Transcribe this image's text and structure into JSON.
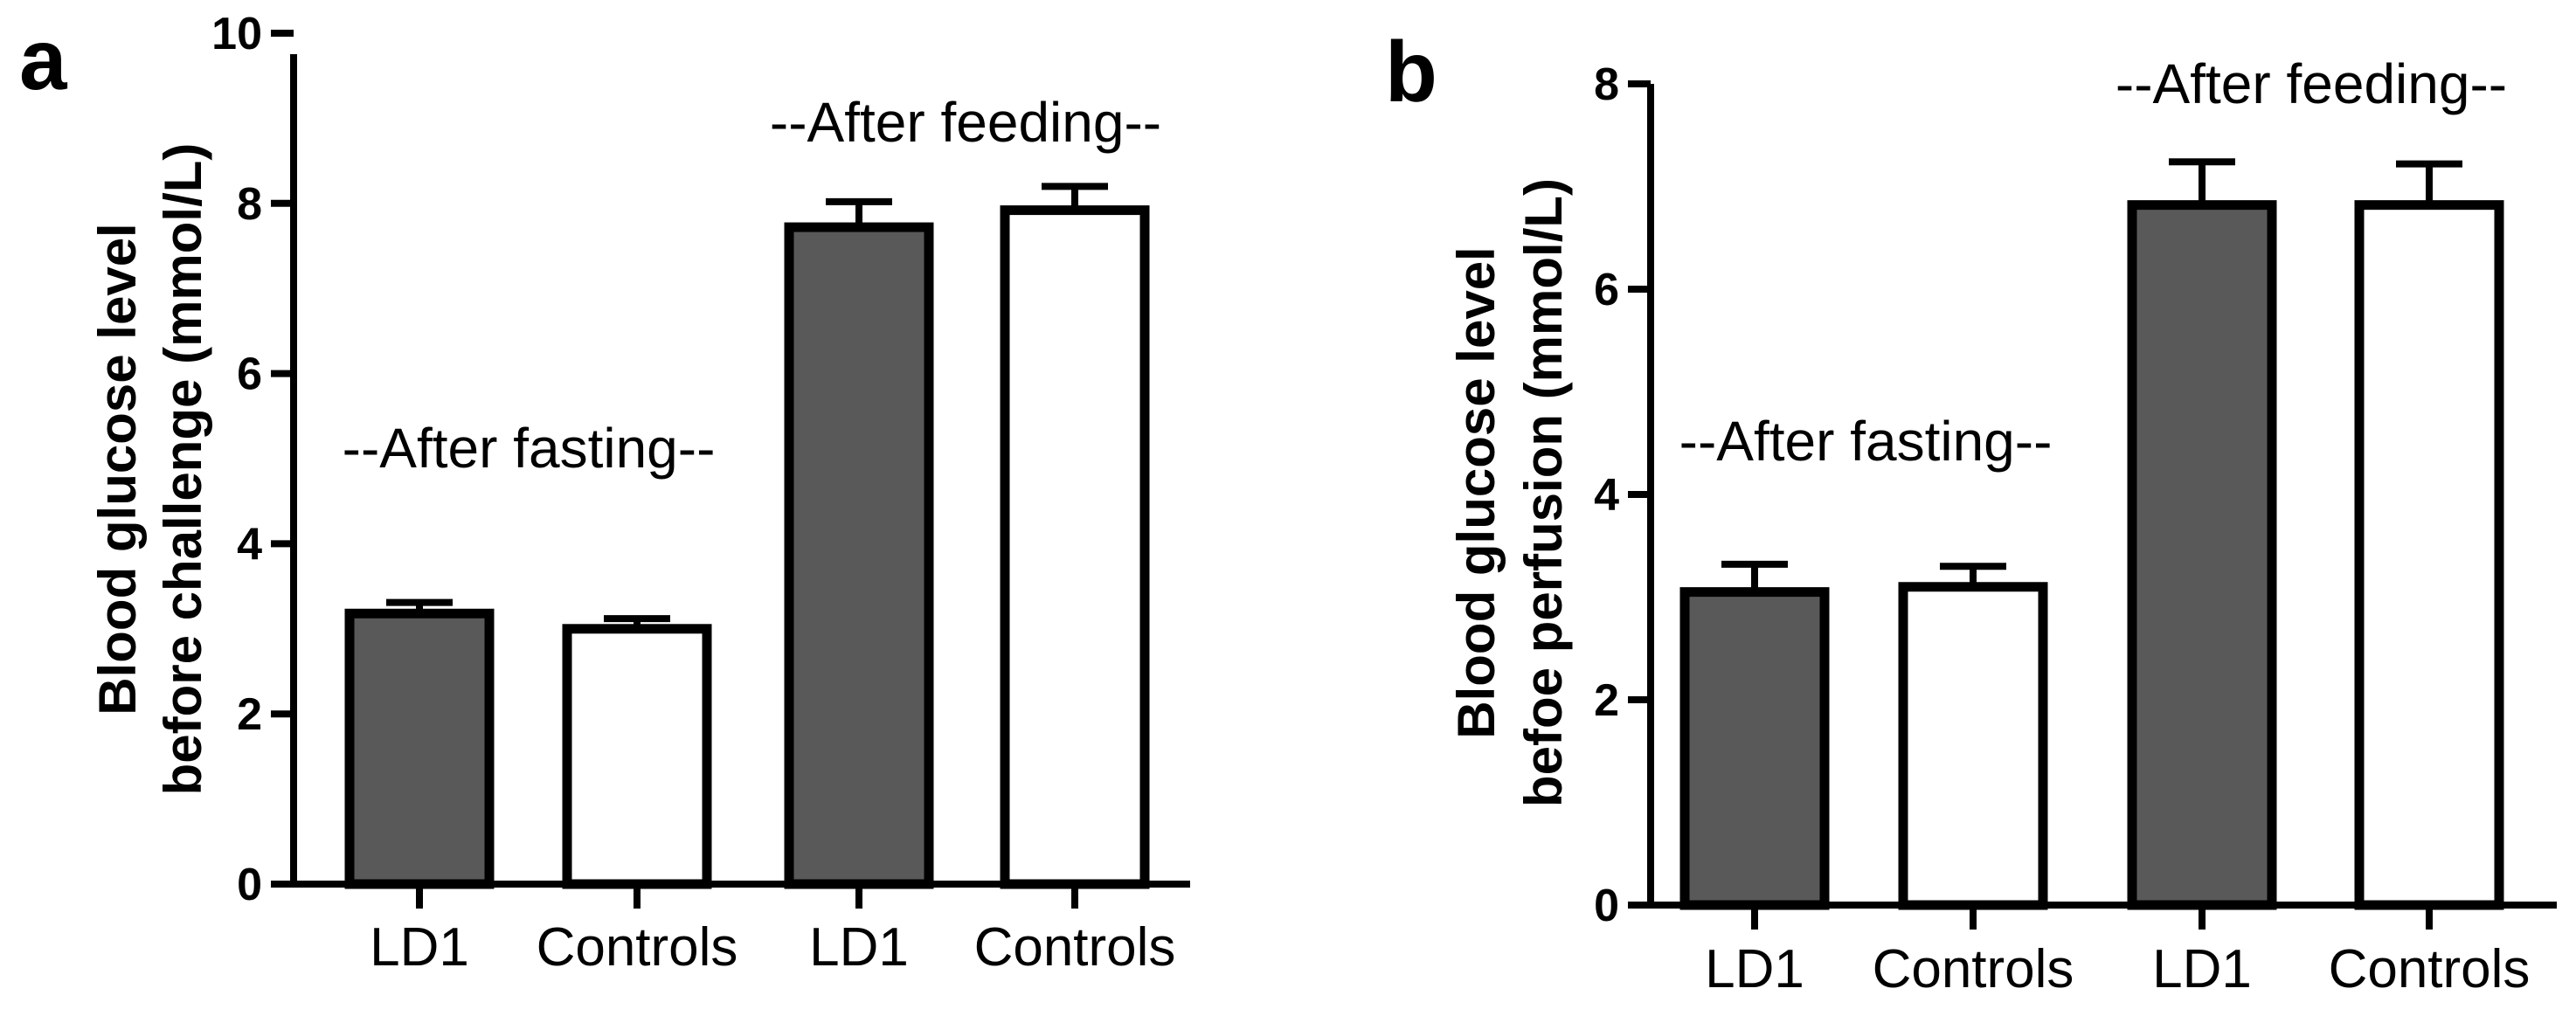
{
  "chart_data": [
    {
      "type": "bar",
      "panel": "a",
      "title": "",
      "categories": [
        "LD1",
        "Controls",
        "LD1",
        "Controls"
      ],
      "values": [
        3.18,
        3.0,
        7.72,
        7.92
      ],
      "errors": [
        0.13,
        0.12,
        0.3,
        0.28
      ],
      "bar_colors": [
        "#595959",
        "#ffffff",
        "#595959",
        "#ffffff"
      ],
      "ylabel_lines": [
        "Blood glucose level",
        "before challenge (mmol/L)"
      ],
      "xlabel": "",
      "ylim": [
        0,
        10
      ],
      "yticks": [
        0,
        2,
        4,
        6,
        8,
        10
      ],
      "annotations": [
        "--After fasting--",
        "--After feeding--"
      ]
    },
    {
      "type": "bar",
      "panel": "b",
      "title": "",
      "categories": [
        "LD1",
        "Controls",
        "LD1",
        "Controls"
      ],
      "values": [
        3.05,
        3.1,
        6.82,
        6.82
      ],
      "errors": [
        0.27,
        0.2,
        0.42,
        0.4
      ],
      "bar_colors": [
        "#595959",
        "#ffffff",
        "#595959",
        "#ffffff"
      ],
      "ylabel_lines": [
        "Blood glucose level",
        "befoe perfusion (mmol/L)"
      ],
      "xlabel": "",
      "ylim": [
        0,
        8
      ],
      "yticks": [
        0,
        2,
        4,
        6,
        8
      ],
      "annotations": [
        "--After fasting--",
        "--After feeding--"
      ]
    }
  ]
}
